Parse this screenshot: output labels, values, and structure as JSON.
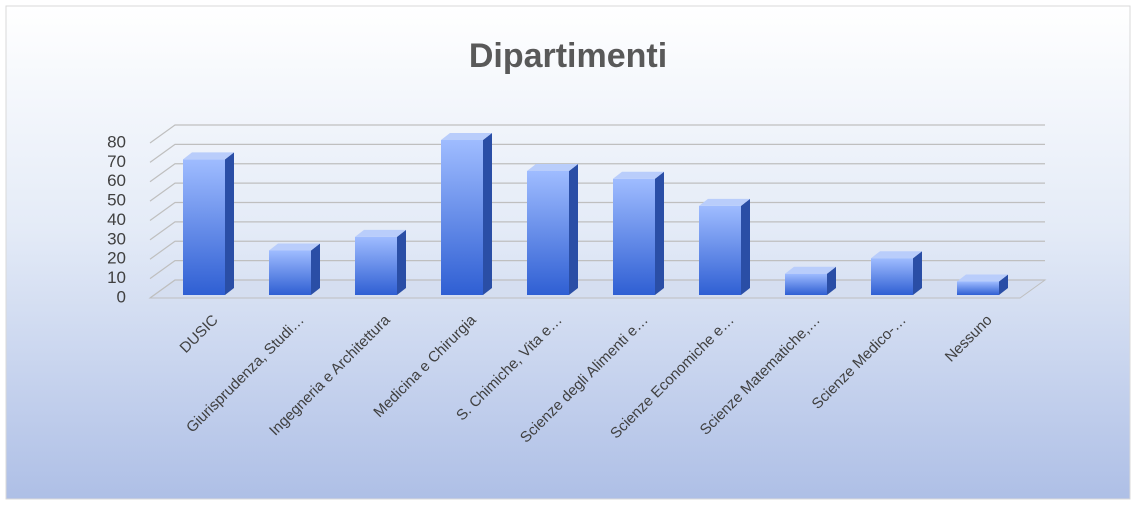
{
  "chart_data": {
    "type": "bar3d",
    "title": "Dipartimenti",
    "categories": [
      "DUSIC",
      "Giurisprudenza, Studi…",
      "Ingegneria e Architettura",
      "Medicina e Chirurgia",
      "S. Chimiche, Vita e…",
      "Scienze degli Alimenti e…",
      "Scienze Economiche e…",
      "Scienze Matematiche,…",
      "Scienze Medico-…",
      "Nessuno"
    ],
    "values": [
      70,
      23,
      30,
      80,
      64,
      60,
      46,
      11,
      19,
      7
    ],
    "color": "#4a7be8",
    "ylim": [
      0,
      80
    ],
    "yticks": [
      0,
      10,
      20,
      30,
      40,
      50,
      60,
      70,
      80
    ],
    "grid": true
  }
}
